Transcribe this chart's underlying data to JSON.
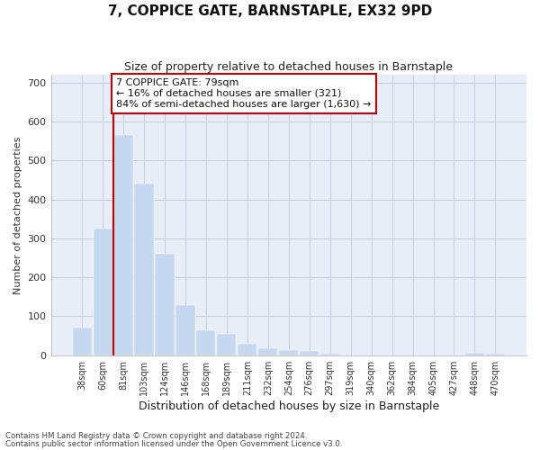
{
  "title": "7, COPPICE GATE, BARNSTAPLE, EX32 9PD",
  "subtitle": "Size of property relative to detached houses in Barnstaple",
  "xlabel": "Distribution of detached houses by size in Barnstaple",
  "ylabel": "Number of detached properties",
  "categories": [
    "38sqm",
    "60sqm",
    "81sqm",
    "103sqm",
    "124sqm",
    "146sqm",
    "168sqm",
    "189sqm",
    "211sqm",
    "232sqm",
    "254sqm",
    "276sqm",
    "297sqm",
    "319sqm",
    "340sqm",
    "362sqm",
    "384sqm",
    "405sqm",
    "427sqm",
    "448sqm",
    "470sqm"
  ],
  "values": [
    72,
    325,
    565,
    440,
    260,
    128,
    65,
    55,
    30,
    18,
    14,
    10,
    3,
    0,
    0,
    0,
    0,
    0,
    0,
    6,
    5
  ],
  "bar_color": "#c5d8f0",
  "bar_edge_color": "#c5d8f0",
  "grid_color": "#c8d0e0",
  "background_color": "#e8eef8",
  "property_line_color": "#cc0000",
  "annotation_text": "7 COPPICE GATE: 79sqm\n← 16% of detached houses are smaller (321)\n84% of semi-detached houses are larger (1,630) →",
  "annotation_box_color": "#ffffff",
  "annotation_box_edge": "#cc0000",
  "ylim": [
    0,
    720
  ],
  "yticks": [
    0,
    100,
    200,
    300,
    400,
    500,
    600,
    700
  ],
  "footnote1": "Contains HM Land Registry data © Crown copyright and database right 2024.",
  "footnote2": "Contains public sector information licensed under the Open Government Licence v3.0."
}
